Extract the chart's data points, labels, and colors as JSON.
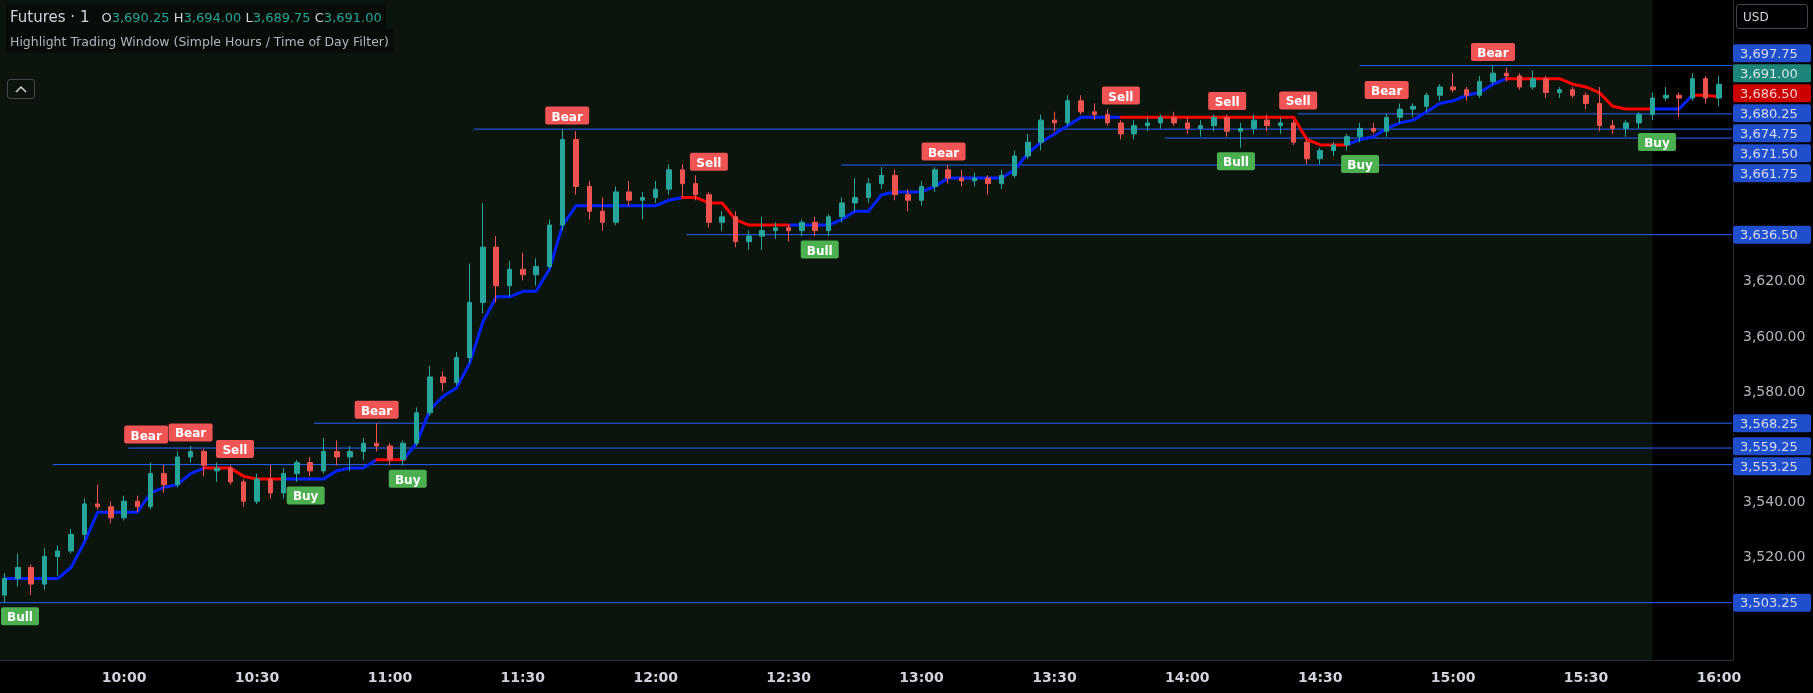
{
  "chart_data": {
    "type": "candlestick",
    "title": "Futures · 1",
    "subtitle": "O3,690.25 H3,694.00 L3,689.75 C3,691.00",
    "annotations": [
      "Highlight Trading Window (Simple Hours / Time of Day Filter)",
      "USD",
      {
        "text": "Bull",
        "x": 9.55,
        "y": 3503.25
      },
      {
        "text": "Bear",
        "x": 10.083,
        "y": 3554
      },
      {
        "text": "Bear",
        "x": 10.25,
        "y": 3560
      },
      {
        "text": "Sell",
        "x": 10.417,
        "y": 3553
      },
      {
        "text": "Buy",
        "x": 10.683,
        "y": 3549
      },
      {
        "text": "Bear",
        "x": 10.95,
        "y": 3568.25
      },
      {
        "text": "Buy",
        "x": 11.067,
        "y": 3553
      },
      {
        "text": "Bear",
        "x": 11.667,
        "y": 3674.75
      },
      {
        "text": "Sell",
        "x": 12.2,
        "y": 3652
      },
      {
        "text": "Bull",
        "x": 12.617,
        "y": 3636
      },
      {
        "text": "Bear",
        "x": 13.083,
        "y": 3661.75
      },
      {
        "text": "Sell",
        "x": 13.75,
        "y": 3678
      },
      {
        "text": "Sell",
        "x": 14.15,
        "y": 3680
      },
      {
        "text": "Bull",
        "x": 14.183,
        "y": 3668
      },
      {
        "text": "Sell",
        "x": 14.417,
        "y": 3678
      },
      {
        "text": "Buy",
        "x": 14.65,
        "y": 3670
      },
      {
        "text": "Bear",
        "x": 14.75,
        "y": 3680.25
      },
      {
        "text": "Bear",
        "x": 15.15,
        "y": 3697.75
      },
      {
        "text": "Buy",
        "x": 15.767,
        "y": 3678
      }
    ],
    "x": [
      9.55,
      9.6,
      9.65,
      9.7,
      9.75,
      9.8,
      9.85,
      9.9,
      9.95,
      10,
      10.05,
      10.1,
      10.15,
      10.2,
      10.25,
      10.3,
      10.35,
      10.4,
      10.45,
      10.5,
      10.55,
      10.6,
      10.65,
      10.7,
      10.75,
      10.8,
      10.85,
      10.9,
      10.95,
      11,
      11.05,
      11.1,
      11.15,
      11.2,
      11.25,
      11.3,
      11.35,
      11.4,
      11.45,
      11.5,
      11.55,
      11.6,
      11.65,
      11.7,
      11.75,
      11.8,
      11.85,
      11.9,
      11.95,
      12,
      12.05,
      12.1,
      12.15,
      12.2,
      12.25,
      12.3,
      12.35,
      12.4,
      12.45,
      12.5,
      12.55,
      12.6,
      12.65,
      12.7,
      12.75,
      12.8,
      12.85,
      12.9,
      12.95,
      13,
      13.05,
      13.1,
      13.15,
      13.2,
      13.25,
      13.3,
      13.35,
      13.4,
      13.45,
      13.5,
      13.55,
      13.6,
      13.65,
      13.7,
      13.75,
      13.8,
      13.85,
      13.9,
      13.95,
      14,
      14.05,
      14.1,
      14.15,
      14.2,
      14.25,
      14.3,
      14.35,
      14.4,
      14.45,
      14.5,
      14.55,
      14.6,
      14.65,
      14.7,
      14.75,
      14.8,
      14.85,
      14.9,
      14.95,
      15,
      15.05,
      15.1,
      15.15,
      15.2,
      15.25,
      15.3,
      15.35,
      15.4,
      15.45,
      15.5,
      15.55,
      15.6,
      15.65,
      15.7,
      15.75,
      15.8,
      15.85,
      15.9,
      15.95,
      16
    ],
    "xlim": [
      9.533,
      16.053
    ],
    "xticks": [
      {
        "value": 10,
        "label": "10:00"
      },
      {
        "value": 10.5,
        "label": "10:30"
      },
      {
        "value": 11,
        "label": "11:00"
      },
      {
        "value": 11.5,
        "label": "11:30"
      },
      {
        "value": 12,
        "label": "12:00"
      },
      {
        "value": 12.5,
        "label": "12:30"
      },
      {
        "value": 13,
        "label": "13:00"
      },
      {
        "value": 13.5,
        "label": "13:30"
      },
      {
        "value": 14,
        "label": "14:00"
      },
      {
        "value": 14.5,
        "label": "14:30"
      },
      {
        "value": 15,
        "label": "15:00"
      },
      {
        "value": 15.5,
        "label": "15:30"
      },
      {
        "value": 16,
        "label": "16:00"
      }
    ],
    "ylim": [
      3482.5,
      3721.5
    ],
    "yticks": [
      {
        "value": 3520,
        "label": "3,520.00"
      },
      {
        "value": 3540,
        "label": "3,540.00"
      },
      {
        "value": 3580,
        "label": "3,580.00"
      },
      {
        "value": 3600,
        "label": "3,600.00"
      },
      {
        "value": 3620,
        "label": "3,620.00"
      }
    ],
    "marker": "none",
    "bands": [
      {
        "axis": "x",
        "from": 9.533,
        "to": 15.75,
        "color": "#0b140d"
      }
    ],
    "series": [
      {
        "ohlc": [
          [
            3506,
            3514,
            3503.25,
            3512
          ],
          [
            3512,
            3521,
            3509,
            3516
          ],
          [
            3516,
            3517,
            3506,
            3510
          ],
          [
            3510,
            3523,
            3508,
            3520
          ],
          [
            3520,
            3524,
            3513,
            3522
          ],
          [
            3522,
            3530,
            3521,
            3528
          ],
          [
            3528,
            3541,
            3526,
            3539
          ],
          [
            3539,
            3546,
            3537,
            3538
          ],
          [
            3538,
            3540,
            3532,
            3534
          ],
          [
            3534,
            3542,
            3533,
            3540
          ],
          [
            3540,
            3542,
            3536,
            3538
          ],
          [
            3538,
            3554,
            3537,
            3550
          ],
          [
            3550,
            3553,
            3543,
            3546
          ],
          [
            3546,
            3558,
            3545,
            3556
          ],
          [
            3556,
            3560,
            3554,
            3558
          ],
          [
            3558,
            3559,
            3549,
            3553
          ],
          [
            3551,
            3554,
            3547,
            3552
          ],
          [
            3552,
            3553,
            3546,
            3547
          ],
          [
            3547,
            3548,
            3538,
            3540
          ],
          [
            3540,
            3550,
            3539,
            3548
          ],
          [
            3548,
            3553,
            3541,
            3543
          ],
          [
            3543,
            3552,
            3541,
            3550
          ],
          [
            3550,
            3555,
            3547,
            3554
          ],
          [
            3554,
            3556,
            3549,
            3551
          ],
          [
            3551,
            3563,
            3550,
            3558
          ],
          [
            3558,
            3562,
            3553,
            3556
          ],
          [
            3556,
            3560,
            3551,
            3558
          ],
          [
            3558,
            3563,
            3555,
            3561
          ],
          [
            3561,
            3568.25,
            3558,
            3560
          ],
          [
            3560,
            3561,
            3553,
            3555
          ],
          [
            3555,
            3562,
            3553,
            3561
          ],
          [
            3561,
            3574,
            3560,
            3572
          ],
          [
            3572,
            3589,
            3571,
            3585
          ],
          [
            3585,
            3587,
            3580,
            3583
          ],
          [
            3583,
            3594,
            3582,
            3592
          ],
          [
            3592,
            3626,
            3590,
            3612
          ],
          [
            3612,
            3648,
            3608,
            3632
          ],
          [
            3632,
            3636,
            3612,
            3618
          ],
          [
            3618,
            3627,
            3614,
            3624
          ],
          [
            3624,
            3630,
            3620,
            3622
          ],
          [
            3622,
            3628,
            3618,
            3625
          ],
          [
            3625,
            3642,
            3624,
            3640
          ],
          [
            3640,
            3674.75,
            3638,
            3671
          ],
          [
            3671,
            3674,
            3651,
            3654
          ],
          [
            3654,
            3656,
            3642,
            3645
          ],
          [
            3645,
            3650,
            3638,
            3641
          ],
          [
            3641,
            3654,
            3640,
            3652
          ],
          [
            3652,
            3656,
            3647,
            3649
          ],
          [
            3649,
            3652,
            3642,
            3650
          ],
          [
            3650,
            3656,
            3648,
            3653
          ],
          [
            3653,
            3662,
            3651,
            3660
          ],
          [
            3660,
            3662,
            3650,
            3655
          ],
          [
            3655,
            3658,
            3649,
            3651
          ],
          [
            3651,
            3652,
            3639,
            3641
          ],
          [
            3641,
            3645,
            3638,
            3643
          ],
          [
            3643,
            3645,
            3632,
            3634
          ],
          [
            3634,
            3638,
            3631,
            3636
          ],
          [
            3636,
            3643,
            3631,
            3638
          ],
          [
            3638,
            3641,
            3635,
            3639
          ],
          [
            3639,
            3640,
            3634,
            3638
          ],
          [
            3638,
            3642,
            3636,
            3641
          ],
          [
            3641,
            3643,
            3636,
            3638
          ],
          [
            3638,
            3644,
            3636,
            3643
          ],
          [
            3643,
            3650,
            3641,
            3648
          ],
          [
            3648,
            3657,
            3645,
            3650
          ],
          [
            3650,
            3657,
            3648,
            3655
          ],
          [
            3655,
            3661,
            3653,
            3658
          ],
          [
            3658,
            3660,
            3649,
            3651
          ],
          [
            3651,
            3653,
            3645,
            3649
          ],
          [
            3649,
            3656,
            3647,
            3654
          ],
          [
            3654,
            3661,
            3652,
            3660
          ],
          [
            3660,
            3661.75,
            3655,
            3657
          ],
          [
            3657,
            3660,
            3654,
            3656
          ],
          [
            3656,
            3659,
            3654,
            3657
          ],
          [
            3657,
            3658,
            3651,
            3655
          ],
          [
            3655,
            3660,
            3653,
            3658
          ],
          [
            3658,
            3667,
            3657,
            3665
          ],
          [
            3665,
            3673,
            3664,
            3670
          ],
          [
            3670,
            3680,
            3667,
            3678
          ],
          [
            3678,
            3681,
            3674,
            3677
          ],
          [
            3677,
            3687,
            3676,
            3685
          ],
          [
            3685,
            3687,
            3680,
            3681
          ],
          [
            3681,
            3684,
            3678,
            3680
          ],
          [
            3680,
            3682,
            3676,
            3677
          ],
          [
            3677,
            3678,
            3671,
            3673
          ],
          [
            3673,
            3678,
            3671,
            3676
          ],
          [
            3676,
            3679,
            3674,
            3677
          ],
          [
            3677,
            3680,
            3675,
            3679
          ],
          [
            3679,
            3681,
            3676,
            3677
          ],
          [
            3677,
            3679,
            3673,
            3675
          ],
          [
            3675,
            3678,
            3672,
            3676
          ],
          [
            3676,
            3680,
            3674,
            3679
          ],
          [
            3679,
            3680,
            3672,
            3674
          ],
          [
            3674,
            3677,
            3668,
            3675
          ],
          [
            3675,
            3680,
            3673,
            3678
          ],
          [
            3678,
            3680,
            3674,
            3676
          ],
          [
            3676,
            3679,
            3673,
            3677
          ],
          [
            3677,
            3678,
            3669,
            3670
          ],
          [
            3670,
            3671,
            3662,
            3664
          ],
          [
            3664,
            3668,
            3662,
            3667
          ],
          [
            3667,
            3670,
            3665,
            3669
          ],
          [
            3669,
            3673,
            3667,
            3672
          ],
          [
            3672,
            3677,
            3670,
            3675
          ],
          [
            3675,
            3677,
            3673,
            3674
          ],
          [
            3674,
            3680.25,
            3672,
            3679
          ],
          [
            3679,
            3684,
            3677,
            3682
          ],
          [
            3682,
            3684,
            3679,
            3683
          ],
          [
            3683,
            3688,
            3681,
            3687
          ],
          [
            3687,
            3691,
            3685,
            3690
          ],
          [
            3690,
            3695,
            3688,
            3689
          ],
          [
            3689,
            3690,
            3685,
            3687
          ],
          [
            3687,
            3694,
            3686,
            3692
          ],
          [
            3692,
            3697.75,
            3691,
            3695
          ],
          [
            3695,
            3697,
            3692,
            3694
          ],
          [
            3694,
            3695,
            3689,
            3690
          ],
          [
            3690,
            3696,
            3689,
            3693
          ],
          [
            3693,
            3694,
            3686,
            3688
          ],
          [
            3688,
            3690,
            3686,
            3689
          ],
          [
            3689,
            3690,
            3686,
            3687
          ],
          [
            3687,
            3688,
            3682,
            3684
          ],
          [
            3684,
            3690,
            3674,
            3676
          ],
          [
            3676,
            3678,
            3673,
            3675
          ],
          [
            3675,
            3678,
            3672,
            3677
          ],
          [
            3677,
            3681,
            3675,
            3680
          ],
          [
            3680,
            3688,
            3678,
            3686
          ],
          [
            3686,
            3690,
            3685,
            3687
          ],
          [
            3687,
            3688,
            3679,
            3686
          ],
          [
            3686,
            3695,
            3685,
            3693
          ],
          [
            3693,
            3694,
            3684,
            3686
          ],
          [
            3686,
            3694,
            3683,
            3691
          ]
        ],
        "colors": [
          "#26a69a",
          "#26a69a",
          "#ef5350",
          "#26a69a",
          "#26a69a",
          "#26a69a",
          "#26a69a",
          "#ef5350",
          "#ef5350",
          "#26a69a",
          "#ef5350",
          "#26a69a",
          "#ef5350",
          "#26a69a",
          "#26a69a",
          "#ef5350",
          "#26a69a",
          "#ef5350",
          "#ef5350",
          "#26a69a",
          "#ef5350",
          "#26a69a",
          "#26a69a",
          "#ef5350",
          "#26a69a",
          "#ef5350",
          "#26a69a",
          "#26a69a",
          "#ef5350",
          "#ef5350",
          "#26a69a",
          "#26a69a",
          "#26a69a",
          "#ef5350",
          "#26a69a",
          "#26a69a",
          "#26a69a",
          "#ef5350",
          "#26a69a",
          "#ef5350",
          "#26a69a",
          "#26a69a",
          "#26a69a",
          "#ef5350",
          "#ef5350",
          "#ef5350",
          "#26a69a",
          "#ef5350",
          "#26a69a",
          "#26a69a",
          "#26a69a",
          "#ef5350",
          "#ef5350",
          "#ef5350",
          "#26a69a",
          "#ef5350",
          "#26a69a",
          "#26a69a",
          "#26a69a",
          "#ef5350",
          "#26a69a",
          "#ef5350",
          "#26a69a",
          "#26a69a",
          "#26a69a",
          "#26a69a",
          "#26a69a",
          "#ef5350",
          "#ef5350",
          "#26a69a",
          "#26a69a",
          "#ef5350",
          "#ef5350",
          "#26a69a",
          "#ef5350",
          "#26a69a",
          "#26a69a",
          "#26a69a",
          "#26a69a",
          "#ef5350",
          "#26a69a",
          "#ef5350",
          "#ef5350",
          "#ef5350",
          "#ef5350",
          "#26a69a",
          "#26a69a",
          "#26a69a",
          "#ef5350",
          "#ef5350",
          "#26a69a",
          "#26a69a",
          "#ef5350",
          "#26a69a",
          "#26a69a",
          "#ef5350",
          "#26a69a",
          "#ef5350",
          "#ef5350",
          "#26a69a",
          "#26a69a",
          "#26a69a",
          "#26a69a",
          "#ef5350",
          "#26a69a",
          "#26a69a",
          "#26a69a",
          "#26a69a",
          "#26a69a",
          "#ef5350",
          "#ef5350",
          "#26a69a",
          "#26a69a",
          "#ef5350",
          "#ef5350",
          "#26a69a",
          "#ef5350",
          "#26a69a",
          "#ef5350",
          "#ef5350",
          "#ef5350",
          "#ef5350",
          "#26a69a",
          "#26a69a",
          "#26a69a",
          "#26a69a",
          "#ef5350",
          "#26a69a",
          "#ef5350",
          "#26a69a"
        ],
        "value_labels": [
          null,
          null,
          null,
          null,
          null,
          null,
          null,
          null,
          null,
          null,
          null,
          null,
          null,
          null,
          null,
          null,
          null,
          null,
          null,
          null,
          null,
          null,
          null,
          null,
          null,
          null,
          null,
          null,
          null,
          null,
          null,
          null,
          null,
          null,
          null,
          null,
          null,
          null,
          null,
          null,
          null,
          null,
          null,
          null,
          null,
          null,
          null,
          null,
          null,
          null,
          null,
          null,
          null,
          null,
          null,
          null,
          null,
          null,
          null,
          null,
          null,
          null,
          null,
          null,
          null,
          null,
          null,
          null,
          null,
          null,
          null,
          null,
          null,
          null,
          null,
          null,
          null,
          null,
          null,
          null,
          null,
          null,
          null,
          null,
          null,
          null,
          null,
          null,
          null,
          null,
          null,
          null,
          null,
          null,
          null,
          null,
          null,
          null,
          null,
          null,
          null,
          null,
          null,
          null,
          null,
          null,
          null,
          null,
          null,
          null,
          null,
          null,
          null,
          null,
          null,
          null,
          null,
          null,
          null,
          null,
          null,
          null,
          null,
          null,
          null,
          null,
          null,
          null,
          null,
          "3,691.00"
        ]
      },
      {
        "type": "line",
        "color": "#0022ff",
        "values": [
          3512,
          3512,
          3512,
          3512,
          3512,
          3516,
          3525,
          3536,
          3536,
          3536,
          3536,
          3543,
          3545,
          3546,
          3550,
          3552,
          null,
          null,
          null,
          null,
          null,
          3548,
          3548,
          3548,
          3548,
          3551,
          3552,
          3552,
          3555,
          null,
          3555,
          3561,
          3573,
          3578,
          3581,
          3590,
          3605,
          3614,
          3614,
          3616,
          3616,
          3624,
          3640,
          3647,
          3647,
          3647,
          3647,
          3647,
          3647,
          3647,
          3649,
          3650,
          null,
          null,
          null,
          null,
          null,
          null,
          null,
          3640,
          3640,
          3640,
          3640,
          3642,
          3645,
          3645,
          3651,
          3652,
          3652,
          3652,
          3654,
          3657,
          3657,
          3657,
          3657,
          3657,
          3660,
          3666,
          3670,
          3673,
          3676,
          3679,
          3679,
          3679,
          3679,
          null,
          null,
          null,
          null,
          null,
          null,
          null,
          null,
          null,
          null,
          null,
          null,
          null,
          null,
          null,
          null,
          3669,
          3671,
          3672,
          3675,
          3677,
          3678,
          3681,
          3684,
          3685,
          3687,
          3688,
          3691,
          3693,
          null,
          null,
          null,
          null,
          null,
          null,
          null,
          null,
          null,
          null,
          3682,
          3682,
          3682,
          3687,
          null,
          null
        ]
      },
      {
        "type": "line",
        "color": "#ff0000",
        "values": [
          null,
          null,
          null,
          null,
          null,
          null,
          null,
          null,
          null,
          null,
          null,
          null,
          null,
          null,
          null,
          3552,
          3552,
          3552,
          3549,
          3548,
          3548,
          3548,
          null,
          null,
          null,
          null,
          null,
          null,
          3555,
          3555,
          3555,
          null,
          null,
          null,
          null,
          null,
          null,
          null,
          null,
          null,
          null,
          null,
          null,
          null,
          null,
          null,
          null,
          null,
          null,
          null,
          null,
          3650,
          3650,
          3648,
          3648,
          3642,
          3640,
          3640,
          3640,
          3640,
          null,
          null,
          null,
          null,
          null,
          null,
          null,
          null,
          null,
          null,
          null,
          null,
          null,
          null,
          null,
          null,
          null,
          null,
          null,
          null,
          null,
          null,
          null,
          null,
          3679,
          3679,
          3679,
          3679,
          3679,
          3679,
          3679,
          3679,
          3679,
          3679,
          3679,
          3679,
          3679,
          3679,
          3671,
          3669,
          3669,
          3669,
          null,
          null,
          null,
          null,
          null,
          null,
          null,
          null,
          null,
          null,
          null,
          3693,
          3693,
          3693,
          3693,
          3693,
          3691,
          3690,
          3688,
          3683,
          3682,
          3682,
          3682,
          null,
          null,
          3687,
          3687,
          3686.5
        ],
        "value_labels": [
          null,
          null,
          null,
          null,
          null,
          null,
          null,
          null,
          null,
          null,
          null,
          null,
          null,
          null,
          null,
          null,
          null,
          null,
          null,
          null,
          null,
          null,
          null,
          null,
          null,
          null,
          null,
          null,
          null,
          null,
          null,
          null,
          null,
          null,
          null,
          null,
          null,
          null,
          null,
          null,
          null,
          null,
          null,
          null,
          null,
          null,
          null,
          null,
          null,
          null,
          null,
          null,
          null,
          null,
          null,
          null,
          null,
          null,
          null,
          null,
          null,
          null,
          null,
          null,
          null,
          null,
          null,
          null,
          null,
          null,
          null,
          null,
          null,
          null,
          null,
          null,
          null,
          null,
          null,
          null,
          null,
          null,
          null,
          null,
          null,
          null,
          null,
          null,
          null,
          null,
          null,
          null,
          null,
          null,
          null,
          null,
          null,
          null,
          null,
          null,
          null,
          null,
          null,
          null,
          null,
          null,
          null,
          null,
          null,
          null,
          null,
          null,
          null,
          null,
          null,
          null,
          null,
          null,
          null,
          null,
          null,
          null,
          null,
          null,
          null,
          null,
          null,
          null,
          null,
          "3,686.50"
        ]
      },
      {
        "type": "line",
        "color": "#2962ff",
        "x": [
          14.65,
          16.053
        ],
        "values": [
          3697.75,
          3697.75
        ],
        "value_labels": [
          null,
          "3,697.75"
        ]
      },
      {
        "type": "line",
        "color": "#2962ff",
        "x": [
          14.417,
          16.053
        ],
        "values": [
          3680.25,
          3680.25
        ],
        "value_labels": [
          null,
          "3,680.25"
        ]
      },
      {
        "type": "line",
        "color": "#2962ff",
        "x": [
          11.317,
          16.053
        ],
        "values": [
          3674.75,
          3674.75
        ],
        "value_labels": [
          null,
          "3,674.75"
        ]
      },
      {
        "type": "line",
        "color": "#2962ff",
        "x": [
          13.917,
          16.053
        ],
        "values": [
          3671.5,
          3671.5
        ],
        "value_labels": [
          null,
          "3,671.50"
        ]
      },
      {
        "type": "line",
        "color": "#2962ff",
        "x": [
          12.7,
          16.053
        ],
        "values": [
          3661.75,
          3661.75
        ],
        "value_labels": [
          null,
          "3,661.75"
        ]
      },
      {
        "type": "line",
        "color": "#2962ff",
        "x": [
          12.117,
          16.053
        ],
        "values": [
          3636.5,
          3636.5
        ],
        "value_labels": [
          null,
          "3,636.50"
        ]
      },
      {
        "type": "line",
        "color": "#2962ff",
        "x": [
          10.717,
          16.053
        ],
        "values": [
          3568.25,
          3568.25
        ],
        "value_labels": [
          null,
          "3,568.25"
        ]
      },
      {
        "type": "line",
        "color": "#2962ff",
        "x": [
          10.017,
          16.053
        ],
        "values": [
          3559.25,
          3559.25
        ],
        "value_labels": [
          null,
          "3,559.25"
        ]
      },
      {
        "type": "line",
        "color": "#2962ff",
        "x": [
          9.733,
          16.053
        ],
        "values": [
          3553.25,
          3553.25
        ],
        "value_labels": [
          null,
          "3,553.25"
        ]
      },
      {
        "type": "line",
        "color": "#2962ff",
        "x": [
          9.533,
          16.053
        ],
        "values": [
          3503.25,
          3503.25
        ],
        "value_labels": [
          null,
          "3,503.25"
        ]
      }
    ]
  }
}
